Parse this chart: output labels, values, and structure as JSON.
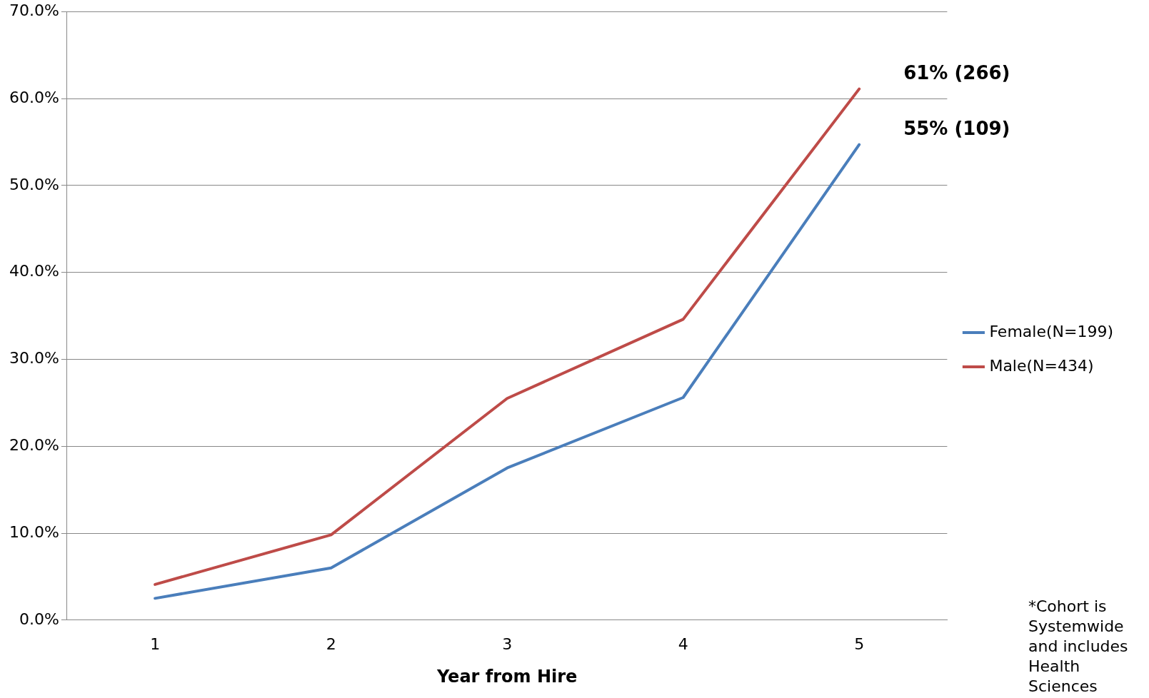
{
  "chart_data": {
    "type": "line",
    "xlabel": "Year from Hire",
    "categories": [
      "1",
      "2",
      "3",
      "4",
      "5"
    ],
    "series": [
      {
        "name": "Female(N=199)",
        "color": "#4a7ebb",
        "values": [
          2.5,
          6.0,
          17.5,
          25.6,
          54.7
        ]
      },
      {
        "name": "Male(N=434)",
        "color": "#be4b48",
        "values": [
          4.1,
          9.8,
          25.5,
          34.6,
          61.1
        ]
      }
    ],
    "ylim": [
      0,
      70
    ],
    "yticks": [
      {
        "value": 0,
        "label": "0.0%"
      },
      {
        "value": 10,
        "label": "10.0%"
      },
      {
        "value": 20,
        "label": "20.0%"
      },
      {
        "value": 30,
        "label": "30.0%"
      },
      {
        "value": 40,
        "label": "40.0%"
      },
      {
        "value": 50,
        "label": "50.0%"
      },
      {
        "value": 60,
        "label": "60.0%"
      },
      {
        "value": 70,
        "label": "70.0%"
      }
    ],
    "grid": "y",
    "legend": "right",
    "marker": "none",
    "line_style": "solid",
    "annotations": [
      {
        "text": "61% (266)",
        "x": "5",
        "y": 61.1
      },
      {
        "text": "55% (109)",
        "x": "5",
        "y": 54.7
      },
      "*Cohort is Systemwide and includes Health Sciences"
    ]
  }
}
